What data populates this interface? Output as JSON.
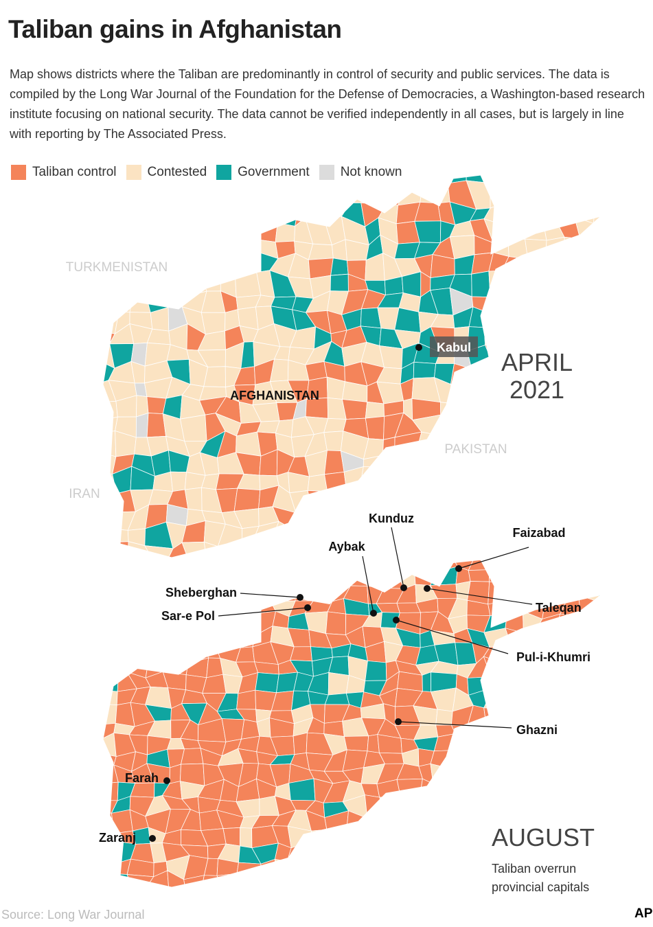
{
  "title": "Taliban gains in Afghanistan",
  "description": "Map shows districts where the Taliban are predominantly in control of security and public services. The data is compiled by the Long War Journal of the Foundation for the Defense of Democracies, a Washington-based research institute focusing on national security. The data cannot be verified independently in all cases, but is largely in line with reporting by The Associated Press.",
  "legend": [
    {
      "label": "Taliban control",
      "color": "#f4845a"
    },
    {
      "label": "Contested",
      "color": "#fbe3c2"
    },
    {
      "label": "Government",
      "color": "#10a5a0"
    },
    {
      "label": "Not known",
      "color": "#dcdcdc"
    }
  ],
  "maps": [
    {
      "period_lines": [
        "APRIL",
        "2021"
      ],
      "labels": [
        "TURKMENISTAN",
        "IRAN",
        "PAKISTAN",
        "AFGHANISTAN"
      ],
      "cities": [
        "Kabul"
      ]
    },
    {
      "period_lines": [
        "AUGUST"
      ],
      "note": "Taliban overrun provincial capitals",
      "cities": [
        "Kunduz",
        "Faizabad",
        "Aybak",
        "Sheberghan",
        "Sar-e Pol",
        "Taleqan",
        "Pul-i-Khumri",
        "Ghazni",
        "Farah",
        "Zaranj"
      ]
    }
  ],
  "source": "Source: Long War Journal",
  "credit": "AP"
}
